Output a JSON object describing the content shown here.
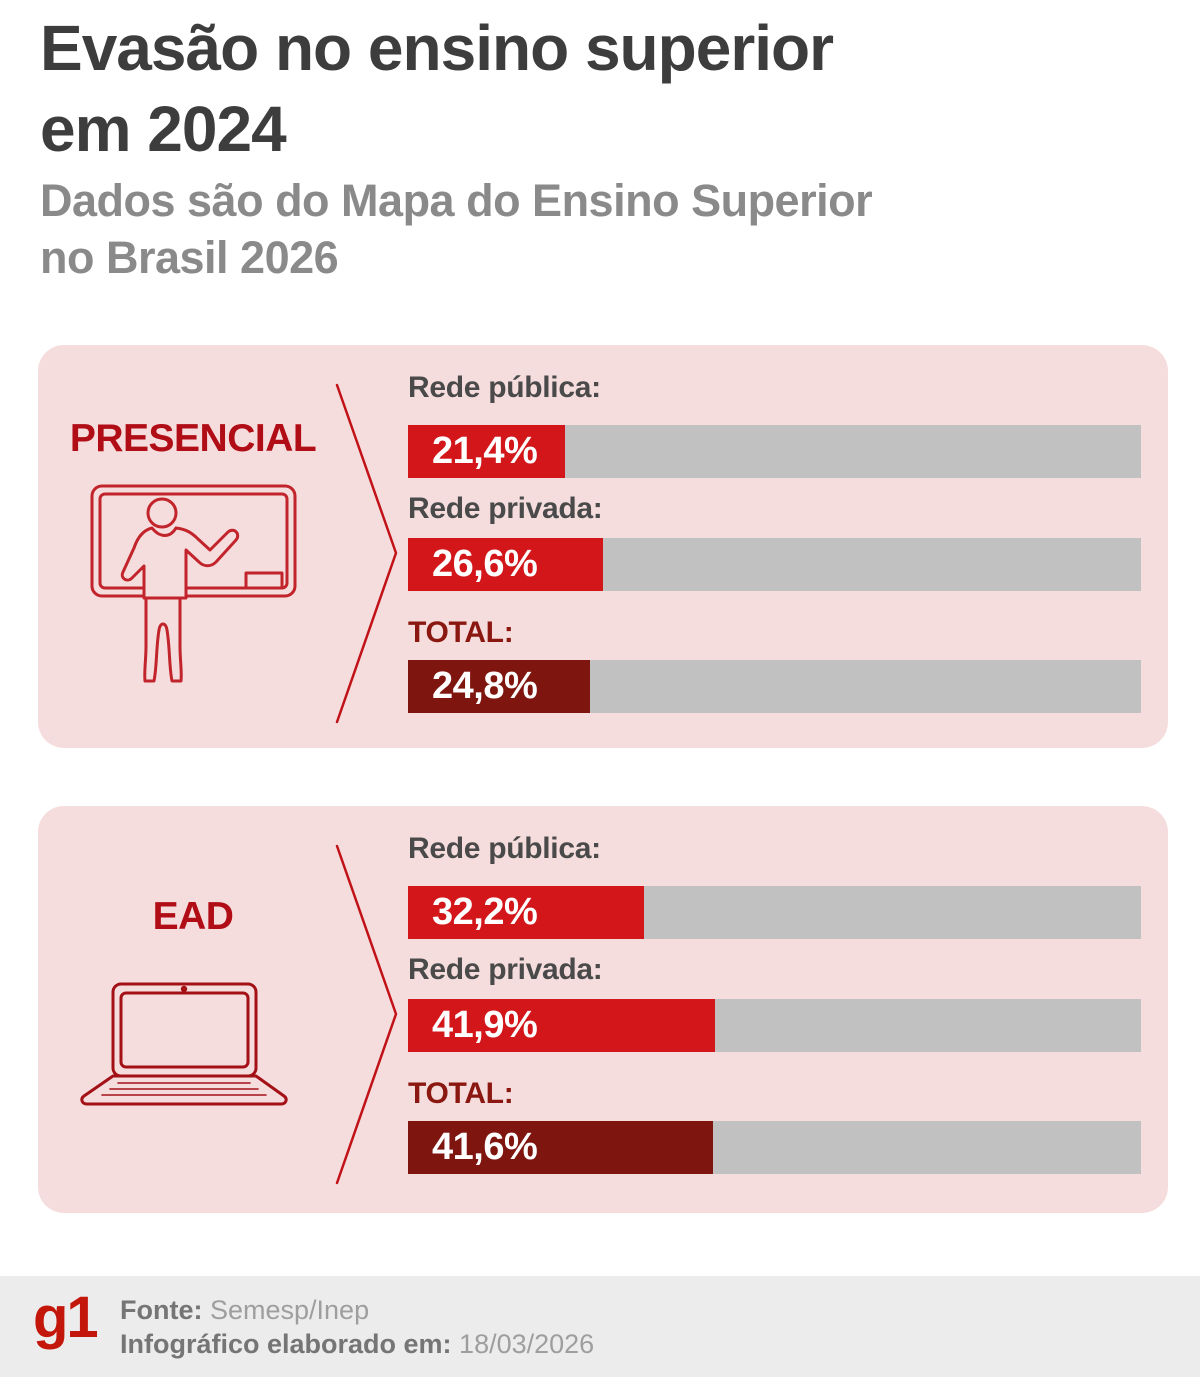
{
  "header": {
    "title_line1": "Evasão no ensino superior",
    "title_line2": "em 2024",
    "subtitle_line1": "Dados são do Mapa do Ensino Superior",
    "subtitle_line2": "no Brasil 2026"
  },
  "sections": [
    {
      "label": "PRESENCIAL",
      "icon": "teacher-board-icon",
      "rows": [
        {
          "label": "Rede pública:",
          "value": 21.4,
          "value_display": "21,4%",
          "style": "red"
        },
        {
          "label": "Rede privada:",
          "value": 26.6,
          "value_display": "26,6%",
          "style": "red"
        },
        {
          "label": "TOTAL:",
          "value": 24.8,
          "value_display": "24,8%",
          "style": "dark"
        }
      ]
    },
    {
      "label": "EAD",
      "icon": "laptop-icon",
      "rows": [
        {
          "label": "Rede pública:",
          "value": 32.2,
          "value_display": "32,2%",
          "style": "red"
        },
        {
          "label": "Rede privada:",
          "value": 41.9,
          "value_display": "41,9%",
          "style": "red"
        },
        {
          "label": "TOTAL:",
          "value": 41.6,
          "value_display": "41,6%",
          "style": "dark"
        }
      ]
    }
  ],
  "footer": {
    "logo": "g1",
    "source_label": "Fonte:",
    "source_value": " Semesp/Inep",
    "date_label": "Infográfico elaborado em:",
    "date_value": " 18/03/2026"
  },
  "colors": {
    "bar_red": "#d2161a",
    "bar_dark_red": "#7e150f",
    "bar_track_gray": "#c1c1c1",
    "panel_pink": "#f6dddd",
    "section_label_red": "#b00d16",
    "total_label_red": "#8a1710",
    "title_gray": "#3d3d3d",
    "subtitle_gray": "#8a8a8a",
    "brand_red": "#c4170c",
    "footer_bg": "#ececec",
    "icon_stroke_presencial": "#c2242b",
    "icon_stroke_ead": "#a31016",
    "chevron_red": "#c11218"
  },
  "chart_data": [
    {
      "type": "bar",
      "orientation": "horizontal",
      "title": "PRESENCIAL",
      "categories": [
        "Rede pública",
        "Rede privada",
        "TOTAL"
      ],
      "values": [
        21.4,
        26.6,
        24.8
      ],
      "value_labels": [
        "21,4%",
        "26,6%",
        "24,8%"
      ],
      "unit": "%",
      "xlim": [
        0,
        100
      ],
      "grid": false,
      "legend": false
    },
    {
      "type": "bar",
      "orientation": "horizontal",
      "title": "EAD",
      "categories": [
        "Rede pública",
        "Rede privada",
        "TOTAL"
      ],
      "values": [
        32.2,
        41.9,
        41.6
      ],
      "value_labels": [
        "32,2%",
        "41,9%",
        "41,6%"
      ],
      "unit": "%",
      "xlim": [
        0,
        100
      ],
      "grid": false,
      "legend": false
    }
  ]
}
